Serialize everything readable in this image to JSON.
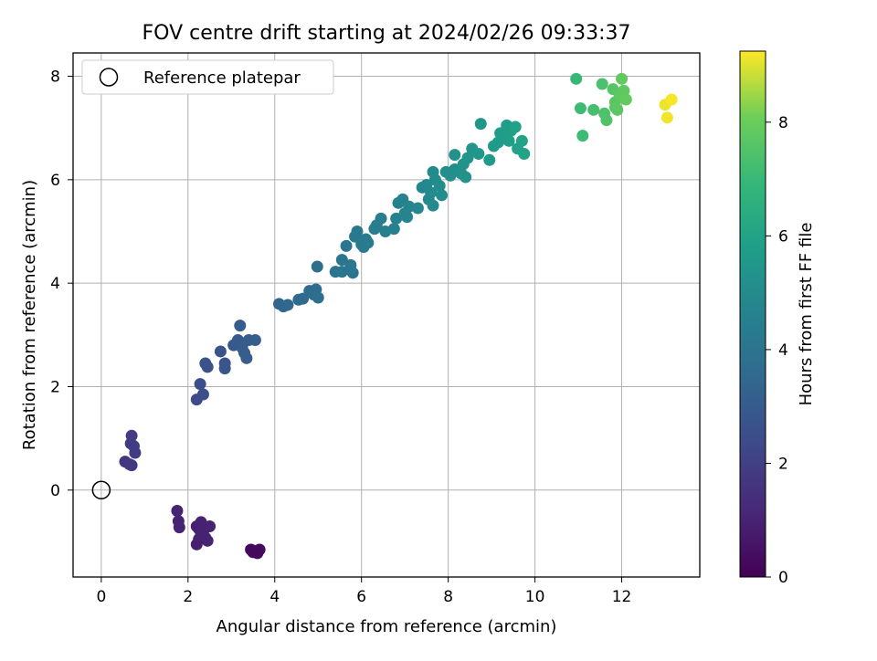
{
  "chart_data": {
    "type": "scatter",
    "title": "FOV centre drift starting at 2024/02/26 09:33:37",
    "xlabel": "Angular distance from reference (arcmin)",
    "ylabel": "Rotation from reference (arcmin)",
    "xlim": [
      -0.65,
      13.8
    ],
    "ylim": [
      -1.68,
      8.45
    ],
    "x_ticks": [
      "0",
      "2",
      "4",
      "6",
      "8",
      "10",
      "12"
    ],
    "y_ticks": [
      "0",
      "2",
      "4",
      "6",
      "8"
    ],
    "grid": true,
    "legend": {
      "placement": "top-left",
      "entries": [
        "Reference platepar"
      ]
    },
    "reference_point": {
      "name": "Reference platepar",
      "x": 0,
      "y": 0
    },
    "colorbar": {
      "label": "Hours from first FF file",
      "colormap": "viridis",
      "range": [
        0,
        9.25
      ],
      "ticks": [
        "0",
        "2",
        "4",
        "6",
        "8"
      ]
    },
    "points": [
      {
        "x": 3.45,
        "y": -1.15,
        "t": 0.2
      },
      {
        "x": 3.55,
        "y": -1.18,
        "t": 0.25
      },
      {
        "x": 3.6,
        "y": -1.22,
        "t": 0.3
      },
      {
        "x": 3.65,
        "y": -1.15,
        "t": 0.3
      },
      {
        "x": 3.5,
        "y": -1.2,
        "t": 0.28
      },
      {
        "x": 1.75,
        "y": -0.4,
        "t": 1.0
      },
      {
        "x": 1.78,
        "y": -0.6,
        "t": 1.0
      },
      {
        "x": 1.8,
        "y": -0.72,
        "t": 1.05
      },
      {
        "x": 2.2,
        "y": -0.7,
        "t": 0.9
      },
      {
        "x": 2.25,
        "y": -0.75,
        "t": 0.9
      },
      {
        "x": 2.3,
        "y": -0.62,
        "t": 0.95
      },
      {
        "x": 2.35,
        "y": -0.8,
        "t": 0.95
      },
      {
        "x": 2.4,
        "y": -0.92,
        "t": 1.0
      },
      {
        "x": 2.45,
        "y": -0.98,
        "t": 1.0
      },
      {
        "x": 2.5,
        "y": -0.7,
        "t": 1.0
      },
      {
        "x": 2.25,
        "y": -0.95,
        "t": 0.95
      },
      {
        "x": 2.2,
        "y": -1.05,
        "t": 0.9
      },
      {
        "x": 2.3,
        "y": -0.85,
        "t": 0.95
      },
      {
        "x": 0.55,
        "y": 0.55,
        "t": 1.7
      },
      {
        "x": 0.65,
        "y": 0.5,
        "t": 1.75
      },
      {
        "x": 0.7,
        "y": 0.48,
        "t": 1.8
      },
      {
        "x": 0.68,
        "y": 0.9,
        "t": 1.85
      },
      {
        "x": 0.75,
        "y": 0.85,
        "t": 1.9
      },
      {
        "x": 0.7,
        "y": 1.05,
        "t": 1.9
      },
      {
        "x": 0.78,
        "y": 0.72,
        "t": 1.85
      },
      {
        "x": 2.2,
        "y": 1.75,
        "t": 2.4
      },
      {
        "x": 2.35,
        "y": 1.85,
        "t": 2.45
      },
      {
        "x": 2.28,
        "y": 2.05,
        "t": 2.5
      },
      {
        "x": 2.4,
        "y": 2.45,
        "t": 2.6
      },
      {
        "x": 2.45,
        "y": 2.38,
        "t": 2.6
      },
      {
        "x": 2.75,
        "y": 2.68,
        "t": 2.7
      },
      {
        "x": 2.85,
        "y": 2.35,
        "t": 2.75
      },
      {
        "x": 2.85,
        "y": 2.45,
        "t": 2.75
      },
      {
        "x": 3.05,
        "y": 2.8,
        "t": 2.9
      },
      {
        "x": 3.15,
        "y": 2.9,
        "t": 2.95
      },
      {
        "x": 3.2,
        "y": 3.18,
        "t": 3.0
      },
      {
        "x": 3.25,
        "y": 2.75,
        "t": 3.0
      },
      {
        "x": 3.3,
        "y": 2.65,
        "t": 3.05
      },
      {
        "x": 3.35,
        "y": 2.55,
        "t": 3.05
      },
      {
        "x": 3.4,
        "y": 2.9,
        "t": 3.1
      },
      {
        "x": 3.55,
        "y": 2.9,
        "t": 3.15
      },
      {
        "x": 4.1,
        "y": 3.6,
        "t": 3.4
      },
      {
        "x": 4.2,
        "y": 3.55,
        "t": 3.45
      },
      {
        "x": 4.3,
        "y": 3.58,
        "t": 3.5
      },
      {
        "x": 4.55,
        "y": 3.68,
        "t": 3.55
      },
      {
        "x": 4.65,
        "y": 3.7,
        "t": 3.6
      },
      {
        "x": 4.8,
        "y": 3.85,
        "t": 3.65
      },
      {
        "x": 4.9,
        "y": 3.78,
        "t": 3.7
      },
      {
        "x": 4.95,
        "y": 3.88,
        "t": 3.7
      },
      {
        "x": 5.0,
        "y": 3.72,
        "t": 3.75
      },
      {
        "x": 4.98,
        "y": 4.32,
        "t": 3.8
      },
      {
        "x": 5.4,
        "y": 4.22,
        "t": 4.0
      },
      {
        "x": 5.55,
        "y": 4.22,
        "t": 4.05
      },
      {
        "x": 5.55,
        "y": 4.45,
        "t": 4.05
      },
      {
        "x": 5.65,
        "y": 4.72,
        "t": 4.1
      },
      {
        "x": 5.8,
        "y": 4.2,
        "t": 4.1
      },
      {
        "x": 5.75,
        "y": 4.35,
        "t": 4.15
      },
      {
        "x": 5.85,
        "y": 4.9,
        "t": 4.2
      },
      {
        "x": 5.9,
        "y": 5.0,
        "t": 4.2
      },
      {
        "x": 6.0,
        "y": 4.75,
        "t": 4.25
      },
      {
        "x": 6.05,
        "y": 4.7,
        "t": 4.25
      },
      {
        "x": 6.1,
        "y": 4.85,
        "t": 4.3
      },
      {
        "x": 6.15,
        "y": 4.78,
        "t": 4.3
      },
      {
        "x": 6.3,
        "y": 5.05,
        "t": 4.4
      },
      {
        "x": 6.35,
        "y": 5.12,
        "t": 4.4
      },
      {
        "x": 6.45,
        "y": 5.25,
        "t": 4.45
      },
      {
        "x": 6.55,
        "y": 5.0,
        "t": 4.5
      },
      {
        "x": 6.75,
        "y": 5.05,
        "t": 4.55
      },
      {
        "x": 6.8,
        "y": 5.25,
        "t": 4.6
      },
      {
        "x": 6.85,
        "y": 5.55,
        "t": 4.6
      },
      {
        "x": 6.95,
        "y": 5.62,
        "t": 4.65
      },
      {
        "x": 7.0,
        "y": 5.35,
        "t": 4.7
      },
      {
        "x": 7.05,
        "y": 5.28,
        "t": 4.7
      },
      {
        "x": 7.1,
        "y": 5.48,
        "t": 4.75
      },
      {
        "x": 7.3,
        "y": 5.45,
        "t": 4.8
      },
      {
        "x": 7.4,
        "y": 5.85,
        "t": 4.85
      },
      {
        "x": 7.5,
        "y": 5.9,
        "t": 4.9
      },
      {
        "x": 7.55,
        "y": 5.62,
        "t": 4.9
      },
      {
        "x": 7.6,
        "y": 5.75,
        "t": 4.95
      },
      {
        "x": 7.65,
        "y": 5.5,
        "t": 4.95
      },
      {
        "x": 7.7,
        "y": 6.0,
        "t": 5.0
      },
      {
        "x": 7.65,
        "y": 6.15,
        "t": 5.0
      },
      {
        "x": 7.8,
        "y": 5.88,
        "t": 5.05
      },
      {
        "x": 7.85,
        "y": 5.7,
        "t": 5.05
      },
      {
        "x": 7.95,
        "y": 6.15,
        "t": 5.1
      },
      {
        "x": 8.05,
        "y": 6.08,
        "t": 5.15
      },
      {
        "x": 8.15,
        "y": 6.2,
        "t": 5.15
      },
      {
        "x": 8.15,
        "y": 6.48,
        "t": 5.2
      },
      {
        "x": 8.3,
        "y": 6.12,
        "t": 5.25
      },
      {
        "x": 8.35,
        "y": 6.3,
        "t": 5.3
      },
      {
        "x": 8.4,
        "y": 6.05,
        "t": 5.3
      },
      {
        "x": 8.45,
        "y": 6.42,
        "t": 5.35
      },
      {
        "x": 8.55,
        "y": 6.6,
        "t": 5.4
      },
      {
        "x": 8.7,
        "y": 6.5,
        "t": 5.45
      },
      {
        "x": 8.75,
        "y": 7.08,
        "t": 5.5
      },
      {
        "x": 8.95,
        "y": 6.38,
        "t": 5.6
      },
      {
        "x": 9.05,
        "y": 6.65,
        "t": 5.65
      },
      {
        "x": 9.15,
        "y": 6.72,
        "t": 5.7
      },
      {
        "x": 9.2,
        "y": 6.9,
        "t": 5.75
      },
      {
        "x": 9.25,
        "y": 6.8,
        "t": 5.75
      },
      {
        "x": 9.35,
        "y": 7.05,
        "t": 5.8
      },
      {
        "x": 9.45,
        "y": 6.95,
        "t": 5.85
      },
      {
        "x": 9.55,
        "y": 7.02,
        "t": 5.9
      },
      {
        "x": 9.6,
        "y": 6.6,
        "t": 5.9
      },
      {
        "x": 9.7,
        "y": 6.75,
        "t": 5.95
      },
      {
        "x": 9.75,
        "y": 6.5,
        "t": 6.0
      },
      {
        "x": 9.4,
        "y": 6.75,
        "t": 5.85
      },
      {
        "x": 10.95,
        "y": 7.95,
        "t": 7.0
      },
      {
        "x": 11.05,
        "y": 7.38,
        "t": 7.1
      },
      {
        "x": 11.1,
        "y": 6.85,
        "t": 7.1
      },
      {
        "x": 11.35,
        "y": 7.35,
        "t": 7.3
      },
      {
        "x": 11.55,
        "y": 7.85,
        "t": 7.4
      },
      {
        "x": 11.6,
        "y": 7.28,
        "t": 7.45
      },
      {
        "x": 11.65,
        "y": 7.15,
        "t": 7.5
      },
      {
        "x": 11.8,
        "y": 7.75,
        "t": 7.6
      },
      {
        "x": 11.85,
        "y": 7.5,
        "t": 7.65
      },
      {
        "x": 11.9,
        "y": 7.35,
        "t": 7.7
      },
      {
        "x": 11.95,
        "y": 7.62,
        "t": 7.75
      },
      {
        "x": 12.05,
        "y": 7.72,
        "t": 7.8
      },
      {
        "x": 12.0,
        "y": 7.95,
        "t": 7.85
      },
      {
        "x": 12.1,
        "y": 7.55,
        "t": 7.9
      },
      {
        "x": 11.85,
        "y": 7.4,
        "t": 7.7
      },
      {
        "x": 13.0,
        "y": 7.45,
        "t": 9.1
      },
      {
        "x": 13.05,
        "y": 7.2,
        "t": 9.15
      },
      {
        "x": 13.15,
        "y": 7.55,
        "t": 9.2
      }
    ]
  }
}
